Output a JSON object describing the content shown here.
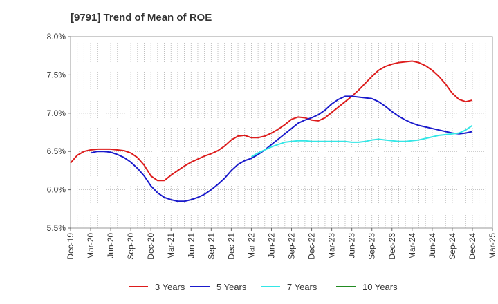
{
  "chart_data": {
    "type": "line",
    "title": "[9791]  Trend of Mean of ROE",
    "xlabel": "",
    "ylabel": "",
    "x_ticks": [
      "Dec-19",
      "Mar-20",
      "Jun-20",
      "Sep-20",
      "Dec-20",
      "Mar-21",
      "Jun-21",
      "Sep-21",
      "Dec-21",
      "Mar-22",
      "Jun-22",
      "Sep-22",
      "Dec-22",
      "Mar-23",
      "Jun-23",
      "Sep-23",
      "Dec-23",
      "Mar-24",
      "Jun-24",
      "Sep-24",
      "Dec-24",
      "Mar-25"
    ],
    "y_ticks": [
      "5.5%",
      "6.0%",
      "6.5%",
      "7.0%",
      "7.5%",
      "8.0%"
    ],
    "ylim": [
      5.5,
      8.0
    ],
    "grid": true,
    "legend_position": "bottom",
    "series": [
      {
        "name": "3 Years",
        "color": "#dd1c1c",
        "values": [
          [
            "2019-12",
            6.35
          ],
          [
            "2020-01",
            6.45
          ],
          [
            "2020-02",
            6.5
          ],
          [
            "2020-03",
            6.52
          ],
          [
            "2020-04",
            6.53
          ],
          [
            "2020-05",
            6.53
          ],
          [
            "2020-06",
            6.53
          ],
          [
            "2020-07",
            6.52
          ],
          [
            "2020-08",
            6.51
          ],
          [
            "2020-09",
            6.48
          ],
          [
            "2020-10",
            6.42
          ],
          [
            "2020-11",
            6.32
          ],
          [
            "2020-12",
            6.18
          ],
          [
            "2021-01",
            6.12
          ],
          [
            "2021-02",
            6.12
          ],
          [
            "2021-03",
            6.19
          ],
          [
            "2021-04",
            6.25
          ],
          [
            "2021-05",
            6.31
          ],
          [
            "2021-06",
            6.36
          ],
          [
            "2021-07",
            6.4
          ],
          [
            "2021-08",
            6.44
          ],
          [
            "2021-09",
            6.47
          ],
          [
            "2021-10",
            6.51
          ],
          [
            "2021-11",
            6.57
          ],
          [
            "2021-12",
            6.65
          ],
          [
            "2022-01",
            6.7
          ],
          [
            "2022-02",
            6.71
          ],
          [
            "2022-03",
            6.68
          ],
          [
            "2022-04",
            6.68
          ],
          [
            "2022-05",
            6.7
          ],
          [
            "2022-06",
            6.74
          ],
          [
            "2022-07",
            6.79
          ],
          [
            "2022-08",
            6.85
          ],
          [
            "2022-09",
            6.92
          ],
          [
            "2022-10",
            6.95
          ],
          [
            "2022-11",
            6.94
          ],
          [
            "2022-12",
            6.91
          ],
          [
            "2023-01",
            6.9
          ],
          [
            "2023-02",
            6.94
          ],
          [
            "2023-03",
            7.01
          ],
          [
            "2023-04",
            7.08
          ],
          [
            "2023-05",
            7.15
          ],
          [
            "2023-06",
            7.22
          ],
          [
            "2023-07",
            7.3
          ],
          [
            "2023-08",
            7.39
          ],
          [
            "2023-09",
            7.48
          ],
          [
            "2023-10",
            7.56
          ],
          [
            "2023-11",
            7.61
          ],
          [
            "2023-12",
            7.64
          ],
          [
            "2024-01",
            7.66
          ],
          [
            "2024-02",
            7.67
          ],
          [
            "2024-03",
            7.68
          ],
          [
            "2024-04",
            7.66
          ],
          [
            "2024-05",
            7.62
          ],
          [
            "2024-06",
            7.56
          ],
          [
            "2024-07",
            7.48
          ],
          [
            "2024-08",
            7.38
          ],
          [
            "2024-09",
            7.26
          ],
          [
            "2024-10",
            7.18
          ],
          [
            "2024-11",
            7.15
          ],
          [
            "2024-12",
            7.17
          ]
        ]
      },
      {
        "name": "5 Years",
        "color": "#1a1acc",
        "values": [
          [
            "2020-03",
            6.48
          ],
          [
            "2020-04",
            6.5
          ],
          [
            "2020-05",
            6.5
          ],
          [
            "2020-06",
            6.49
          ],
          [
            "2020-07",
            6.46
          ],
          [
            "2020-08",
            6.42
          ],
          [
            "2020-09",
            6.36
          ],
          [
            "2020-10",
            6.28
          ],
          [
            "2020-11",
            6.18
          ],
          [
            "2020-12",
            6.05
          ],
          [
            "2021-01",
            5.96
          ],
          [
            "2021-02",
            5.9
          ],
          [
            "2021-03",
            5.87
          ],
          [
            "2021-04",
            5.85
          ],
          [
            "2021-05",
            5.85
          ],
          [
            "2021-06",
            5.87
          ],
          [
            "2021-07",
            5.9
          ],
          [
            "2021-08",
            5.94
          ],
          [
            "2021-09",
            6.0
          ],
          [
            "2021-10",
            6.07
          ],
          [
            "2021-11",
            6.15
          ],
          [
            "2021-12",
            6.25
          ],
          [
            "2022-01",
            6.33
          ],
          [
            "2022-02",
            6.38
          ],
          [
            "2022-03",
            6.41
          ],
          [
            "2022-04",
            6.46
          ],
          [
            "2022-05",
            6.52
          ],
          [
            "2022-06",
            6.59
          ],
          [
            "2022-07",
            6.66
          ],
          [
            "2022-08",
            6.73
          ],
          [
            "2022-09",
            6.8
          ],
          [
            "2022-10",
            6.87
          ],
          [
            "2022-11",
            6.91
          ],
          [
            "2022-12",
            6.94
          ],
          [
            "2023-01",
            6.98
          ],
          [
            "2023-02",
            7.04
          ],
          [
            "2023-03",
            7.12
          ],
          [
            "2023-04",
            7.18
          ],
          [
            "2023-05",
            7.22
          ],
          [
            "2023-06",
            7.22
          ],
          [
            "2023-07",
            7.21
          ],
          [
            "2023-08",
            7.2
          ],
          [
            "2023-09",
            7.19
          ],
          [
            "2023-10",
            7.15
          ],
          [
            "2023-11",
            7.09
          ],
          [
            "2023-12",
            7.02
          ],
          [
            "2024-01",
            6.96
          ],
          [
            "2024-02",
            6.91
          ],
          [
            "2024-03",
            6.87
          ],
          [
            "2024-04",
            6.84
          ],
          [
            "2024-05",
            6.82
          ],
          [
            "2024-06",
            6.8
          ],
          [
            "2024-07",
            6.78
          ],
          [
            "2024-08",
            6.76
          ],
          [
            "2024-09",
            6.74
          ],
          [
            "2024-10",
            6.73
          ],
          [
            "2024-11",
            6.74
          ],
          [
            "2024-12",
            6.76
          ]
        ]
      },
      {
        "name": "7 Years",
        "color": "#33e6e6",
        "values": [
          [
            "2022-03",
            6.43
          ],
          [
            "2022-04",
            6.48
          ],
          [
            "2022-05",
            6.52
          ],
          [
            "2022-06",
            6.56
          ],
          [
            "2022-07",
            6.59
          ],
          [
            "2022-08",
            6.62
          ],
          [
            "2022-09",
            6.63
          ],
          [
            "2022-10",
            6.64
          ],
          [
            "2022-11",
            6.64
          ],
          [
            "2022-12",
            6.63
          ],
          [
            "2023-01",
            6.63
          ],
          [
            "2023-02",
            6.63
          ],
          [
            "2023-03",
            6.63
          ],
          [
            "2023-04",
            6.63
          ],
          [
            "2023-05",
            6.63
          ],
          [
            "2023-06",
            6.62
          ],
          [
            "2023-07",
            6.62
          ],
          [
            "2023-08",
            6.63
          ],
          [
            "2023-09",
            6.65
          ],
          [
            "2023-10",
            6.66
          ],
          [
            "2023-11",
            6.65
          ],
          [
            "2023-12",
            6.64
          ],
          [
            "2024-01",
            6.63
          ],
          [
            "2024-02",
            6.63
          ],
          [
            "2024-03",
            6.64
          ],
          [
            "2024-04",
            6.65
          ],
          [
            "2024-05",
            6.67
          ],
          [
            "2024-06",
            6.69
          ],
          [
            "2024-07",
            6.71
          ],
          [
            "2024-08",
            6.72
          ],
          [
            "2024-09",
            6.73
          ],
          [
            "2024-10",
            6.74
          ],
          [
            "2024-11",
            6.78
          ],
          [
            "2024-12",
            6.84
          ]
        ]
      },
      {
        "name": "10 Years",
        "color": "#228b22",
        "values": []
      }
    ]
  }
}
